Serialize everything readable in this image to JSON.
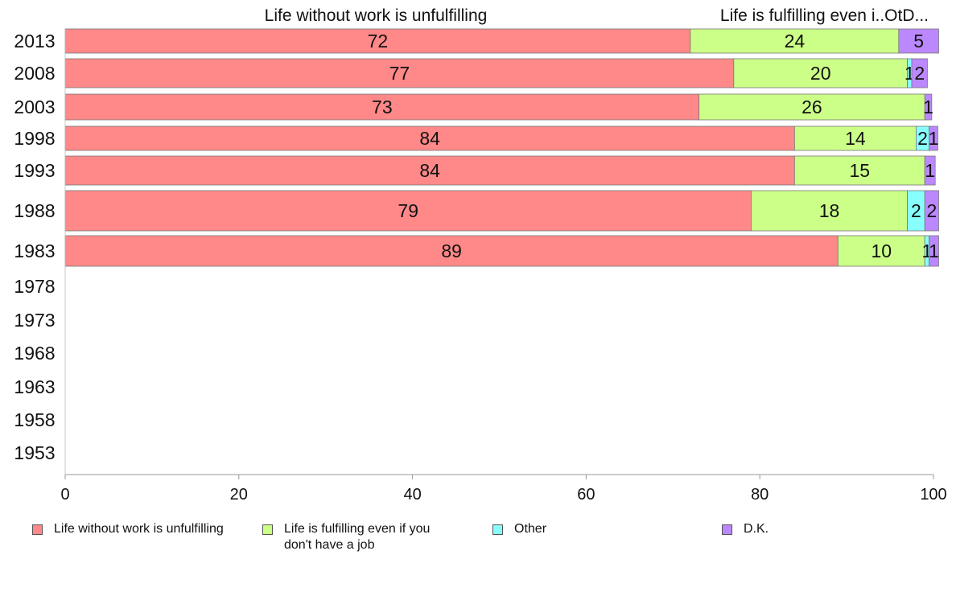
{
  "chart_data": {
    "type": "bar",
    "orientation": "horizontal",
    "stacked": true,
    "header_labels": [
      "Life without work is unfulfilling",
      "Life is fulfilling even i..OtD..."
    ],
    "categories": [
      "2013",
      "2008",
      "2003",
      "1998",
      "1993",
      "1988",
      "1983",
      "1978",
      "1973",
      "1968",
      "1963",
      "1958",
      "1953"
    ],
    "series": [
      {
        "name": "Life without work is unfulfilling",
        "color": "#ff8888",
        "values": [
          72,
          77,
          73,
          84,
          84,
          79,
          89,
          null,
          null,
          null,
          null,
          null,
          null
        ],
        "labels": [
          "72",
          "77",
          "73",
          "84",
          "84",
          "79",
          "89",
          "",
          "",
          "",
          "",
          "",
          ""
        ]
      },
      {
        "name": "Life is fulfilling even if you don't have a job",
        "color": "#ccff88",
        "values": [
          24,
          20,
          26,
          14,
          15,
          18,
          10,
          null,
          null,
          null,
          null,
          null,
          null
        ],
        "labels": [
          "24",
          "20",
          "26",
          "14",
          "15",
          "18",
          "10",
          "",
          "",
          "",
          "",
          "",
          ""
        ]
      },
      {
        "name": "Other",
        "color": "#88ffff",
        "values": [
          0,
          0.5,
          0,
          1.5,
          0,
          2,
          0.5,
          null,
          null,
          null,
          null,
          null,
          null
        ],
        "labels": [
          "",
          "1",
          "",
          "2",
          "",
          "2",
          "1",
          "",
          "",
          "",
          "",
          "",
          ""
        ]
      },
      {
        "name": "D.K.",
        "color": "#bb88ff",
        "values": [
          4.6,
          1.8,
          0.8,
          1.0,
          1.2,
          1.6,
          1.1,
          null,
          null,
          null,
          null,
          null,
          null
        ],
        "labels": [
          "5",
          "2",
          "1",
          "1",
          "1",
          "2",
          "1",
          "",
          "",
          "",
          "",
          "",
          ""
        ]
      }
    ],
    "xlim": [
      0,
      100
    ],
    "xticks": [
      "0",
      "20",
      "40",
      "60",
      "80",
      "100"
    ],
    "grid": false,
    "legend_position": "bottom"
  },
  "legend": [
    {
      "label": "Life without work is unfulfilling",
      "color": "#ff8888"
    },
    {
      "label": "Life is fulfilling even if you don't have a job",
      "color": "#ccff88"
    },
    {
      "label": "Other",
      "color": "#88ffff"
    },
    {
      "label": "D.K.",
      "color": "#bb88ff"
    }
  ]
}
